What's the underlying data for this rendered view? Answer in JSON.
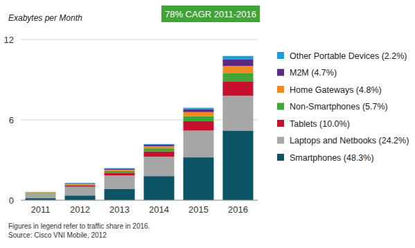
{
  "chart_data": {
    "type": "bar",
    "stacked": true,
    "grid": true,
    "legend": "right",
    "y_label": "Exabytes per Month",
    "annotation": "78% CAGR 2011-2016",
    "footnote": "Figures in legend refer to traffic share in 2016.",
    "source": "Source: Cisco VNI Mobile, 2012",
    "categories": [
      "2011",
      "2012",
      "2013",
      "2014",
      "2015",
      "2016"
    ],
    "ylim": [
      0,
      12
    ],
    "yticks": [
      0,
      6,
      12
    ],
    "series": [
      {
        "name": "Smartphones (48.3%)",
        "color": "#0b5567",
        "values": [
          0.15,
          0.35,
          0.85,
          1.8,
          3.2,
          5.2
        ]
      },
      {
        "name": "Laptops and Netbooks (24.2%)",
        "color": "#a6a6a6",
        "values": [
          0.35,
          0.65,
          1.0,
          1.45,
          2.0,
          2.6
        ]
      },
      {
        "name": "Tablets (10.0%)",
        "color": "#c8102e",
        "values": [
          0.02,
          0.08,
          0.2,
          0.4,
          0.7,
          1.08
        ]
      },
      {
        "name": "Non-Smartphones (5.7%)",
        "color": "#3fa535",
        "values": [
          0.03,
          0.08,
          0.13,
          0.22,
          0.38,
          0.62
        ]
      },
      {
        "name": "Home Gateways (4.8%)",
        "color": "#f08a1e",
        "values": [
          0.02,
          0.06,
          0.1,
          0.17,
          0.3,
          0.52
        ]
      },
      {
        "name": "M2M (4.7%)",
        "color": "#5b2a86",
        "values": [
          0.02,
          0.05,
          0.08,
          0.12,
          0.22,
          0.51
        ]
      },
      {
        "name": "Other Portable Devices (2.2%)",
        "color": "#1ba1d9",
        "values": [
          0.01,
          0.03,
          0.04,
          0.04,
          0.1,
          0.24
        ]
      }
    ]
  }
}
